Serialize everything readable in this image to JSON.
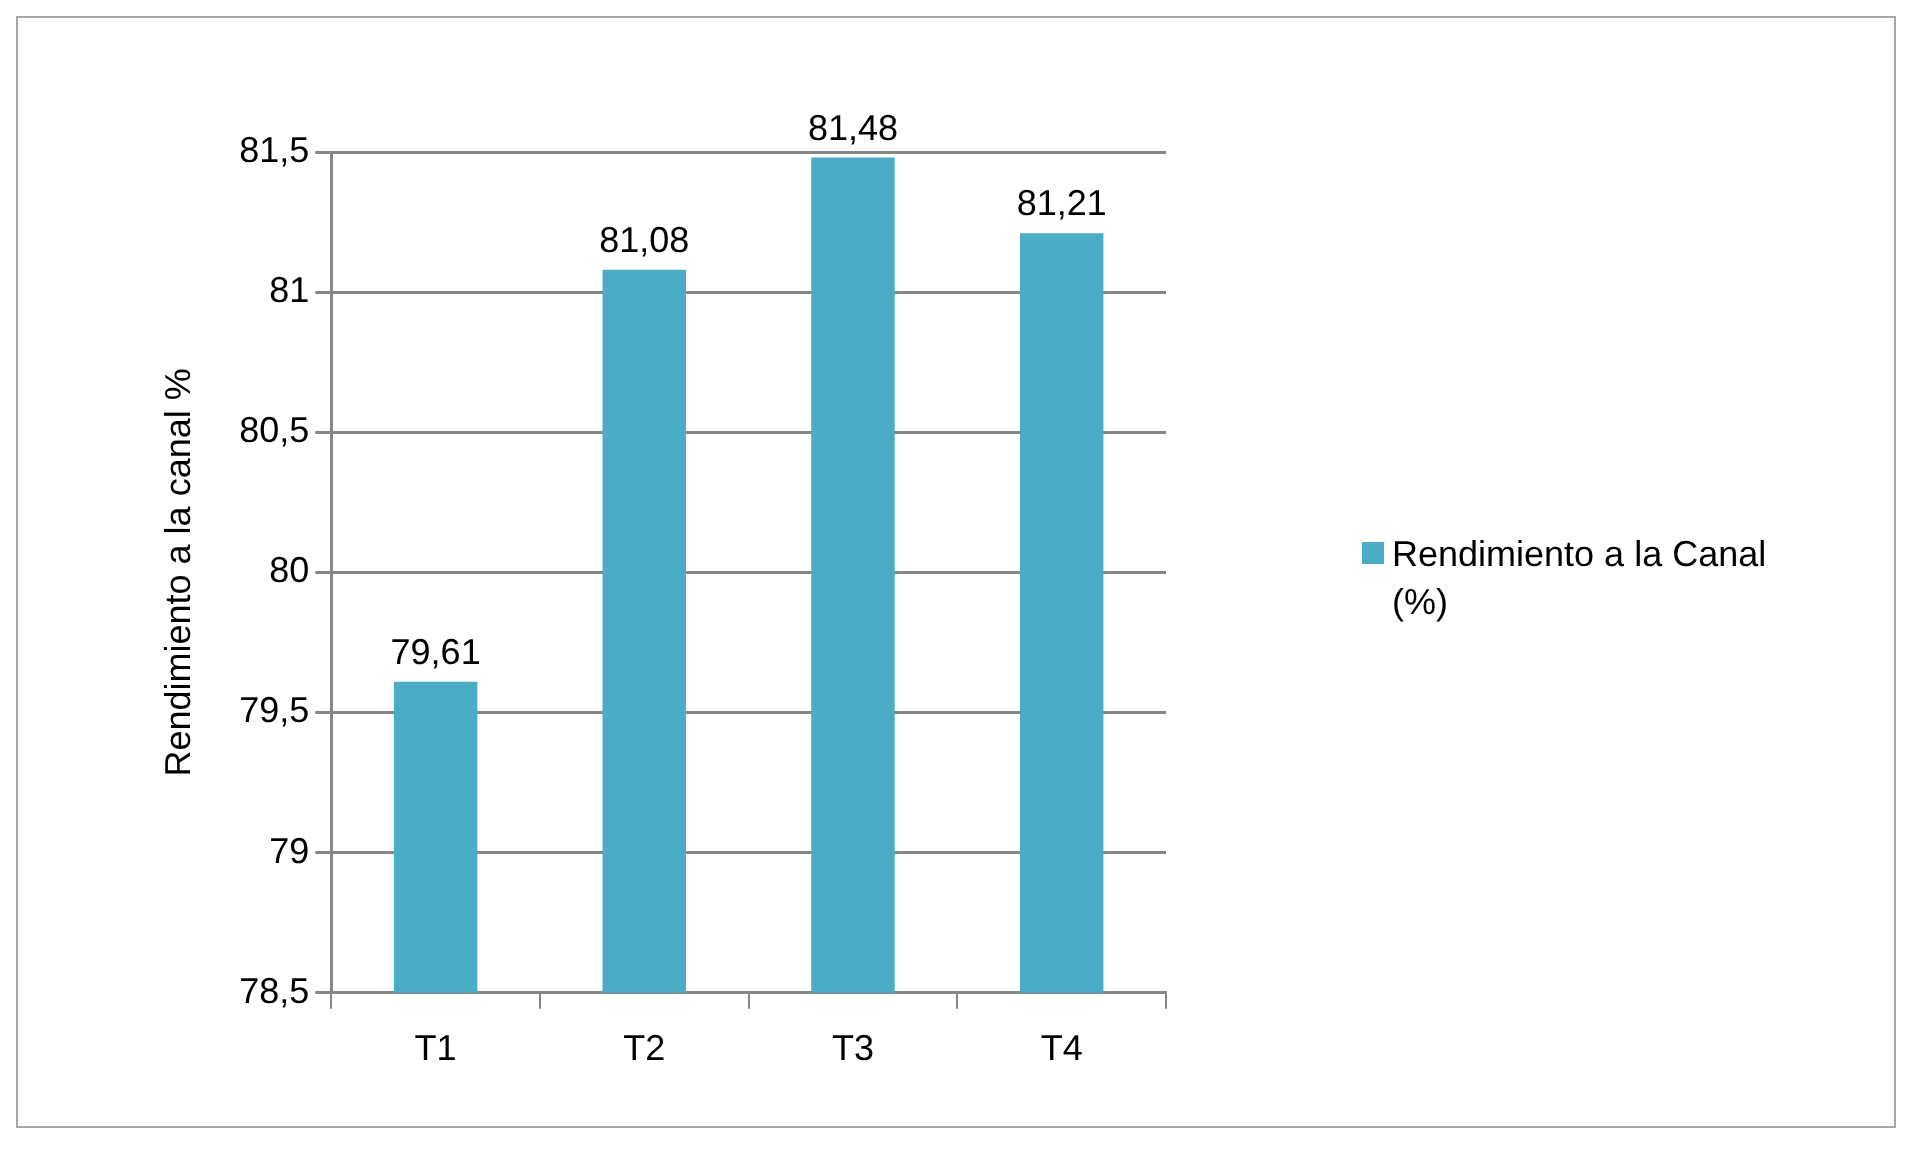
{
  "chart_data": {
    "type": "bar",
    "ylabel": "Rendimiento a la canal %",
    "categories": [
      "T1",
      "T2",
      "T3",
      "T4"
    ],
    "series": [
      {
        "name": "Rendimiento a la Canal (%)",
        "color": "#4bacc6",
        "values": [
          79.61,
          81.08,
          81.48,
          81.21
        ],
        "value_labels": [
          "79,61",
          "81,08",
          "81,48",
          "81,21"
        ]
      }
    ],
    "ylim": [
      78.5,
      81.5
    ],
    "yticks": [
      {
        "value": 78.5,
        "label": "78,5"
      },
      79,
      {
        "value": 79.5,
        "label": "79,5"
      },
      80,
      {
        "value": 80.5,
        "label": "80,5"
      },
      81,
      {
        "value": 81.5,
        "label": "81,5"
      }
    ],
    "grid": "y",
    "legend": "right"
  }
}
